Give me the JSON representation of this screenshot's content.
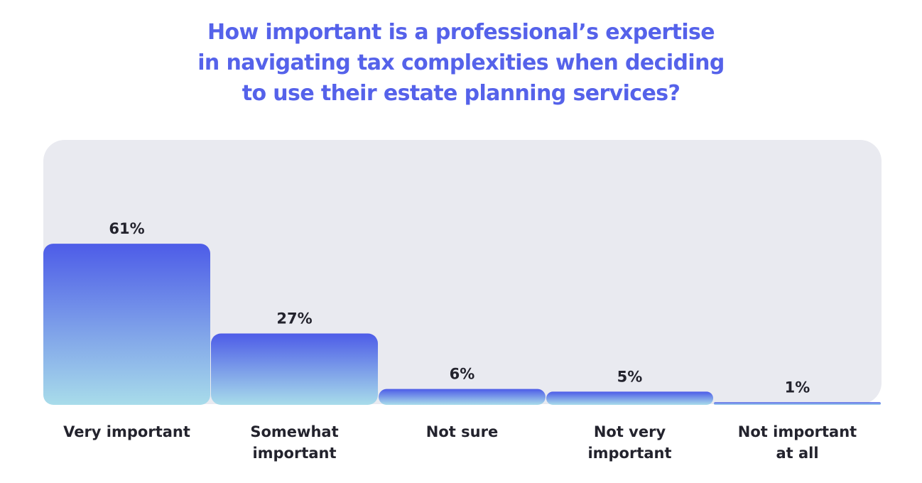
{
  "chart_data": {
    "type": "bar",
    "title_lines": [
      "How important is a professional’s expertise",
      "in navigating tax complexities when deciding",
      "to use their estate planning services?"
    ],
    "categories": [
      [
        "Very important"
      ],
      [
        "Somewhat",
        "important"
      ],
      [
        "Not sure"
      ],
      [
        "Not very",
        "important"
      ],
      [
        "Not important",
        "at all"
      ]
    ],
    "values": [
      61,
      27,
      6,
      5,
      1
    ],
    "value_labels": [
      "61%",
      "27%",
      "6%",
      "5%",
      "1%"
    ],
    "unit": "%",
    "ylim": [
      0,
      100
    ],
    "grid": false,
    "legend": "none",
    "colors": {
      "title": "#5562ea",
      "bar_top": "#4d5ce8",
      "bar_bottom": "#a8dcea",
      "panel": "#e9eaf0",
      "text": "#23232d"
    }
  }
}
